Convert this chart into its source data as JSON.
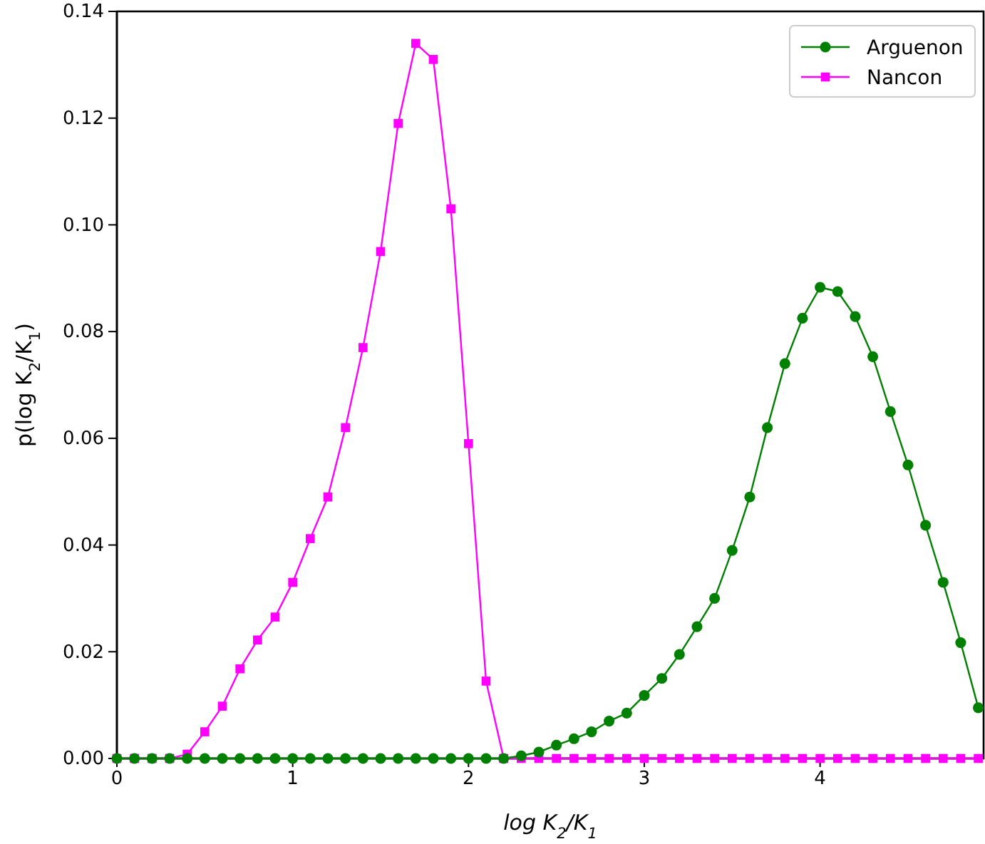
{
  "chart_data": {
    "type": "line",
    "xlabel": "log K$_{2}$/K$_{1}$",
    "ylabel": "p(log K$_{2}$/K$_{1}$)",
    "x": [
      0,
      0.1,
      0.2,
      0.3,
      0.4,
      0.5,
      0.6,
      0.7,
      0.8,
      0.9,
      1,
      1.1,
      1.2,
      1.3,
      1.4,
      1.5,
      1.6,
      1.7,
      1.8,
      1.9,
      2,
      2.1,
      2.2,
      2.3,
      2.4,
      2.5,
      2.6,
      2.7,
      2.8,
      2.9,
      3,
      3.1,
      3.2,
      3.3,
      3.4,
      3.5,
      3.6,
      3.7,
      3.8,
      3.9,
      4,
      4.1,
      4.2,
      4.3,
      4.4,
      4.5,
      4.6,
      4.7,
      4.8,
      4.9
    ],
    "series": [
      {
        "name": "Arguenon",
        "color": "#008000",
        "marker": "circle",
        "values": [
          0,
          0,
          0,
          0,
          0,
          0,
          0,
          0,
          0,
          0,
          0,
          0,
          0,
          0,
          0,
          0,
          0,
          0,
          0,
          0,
          0,
          0,
          0,
          0.0005,
          0.0012,
          0.0025,
          0.0037,
          0.005,
          0.007,
          0.0085,
          0.0118,
          0.015,
          0.0195,
          0.0247,
          0.03,
          0.039,
          0.049,
          0.062,
          0.074,
          0.0825,
          0.0883,
          0.0875,
          0.0828,
          0.0753,
          0.065,
          0.055,
          0.0437,
          0.033,
          0.0217,
          0.0095
        ]
      },
      {
        "name": "Nancon",
        "color": "#ff00ff",
        "marker": "square",
        "values": [
          0,
          0,
          0,
          0,
          0.0008,
          0.005,
          0.0098,
          0.0168,
          0.0222,
          0.0265,
          0.033,
          0.0412,
          0.049,
          0.062,
          0.077,
          0.095,
          0.119,
          0.134,
          0.131,
          0.103,
          0.059,
          0.0145,
          0,
          0,
          0,
          0,
          0,
          0,
          0,
          0,
          0,
          0,
          0,
          0,
          0,
          0,
          0,
          0,
          0,
          0,
          0,
          0,
          0,
          0,
          0,
          0,
          0,
          0,
          0,
          0
        ]
      }
    ],
    "xlim": [
      0,
      4.93
    ],
    "xticks": [
      0,
      1,
      2,
      3,
      4
    ],
    "ylim": [
      0,
      0.14
    ],
    "yticks": [
      {
        "value": 0,
        "label": "0.00"
      },
      {
        "value": 0.02,
        "label": "0.02"
      },
      {
        "value": 0.04,
        "label": "0.04"
      },
      {
        "value": 0.06,
        "label": "0.06"
      },
      {
        "value": 0.08,
        "label": "0.08"
      },
      {
        "value": 0.1,
        "label": "0.10"
      },
      {
        "value": 0.12,
        "label": "0.12"
      },
      {
        "value": 0.14,
        "label": "0.14"
      }
    ],
    "grid": false,
    "legend": "top right",
    "line_style": "solid"
  }
}
